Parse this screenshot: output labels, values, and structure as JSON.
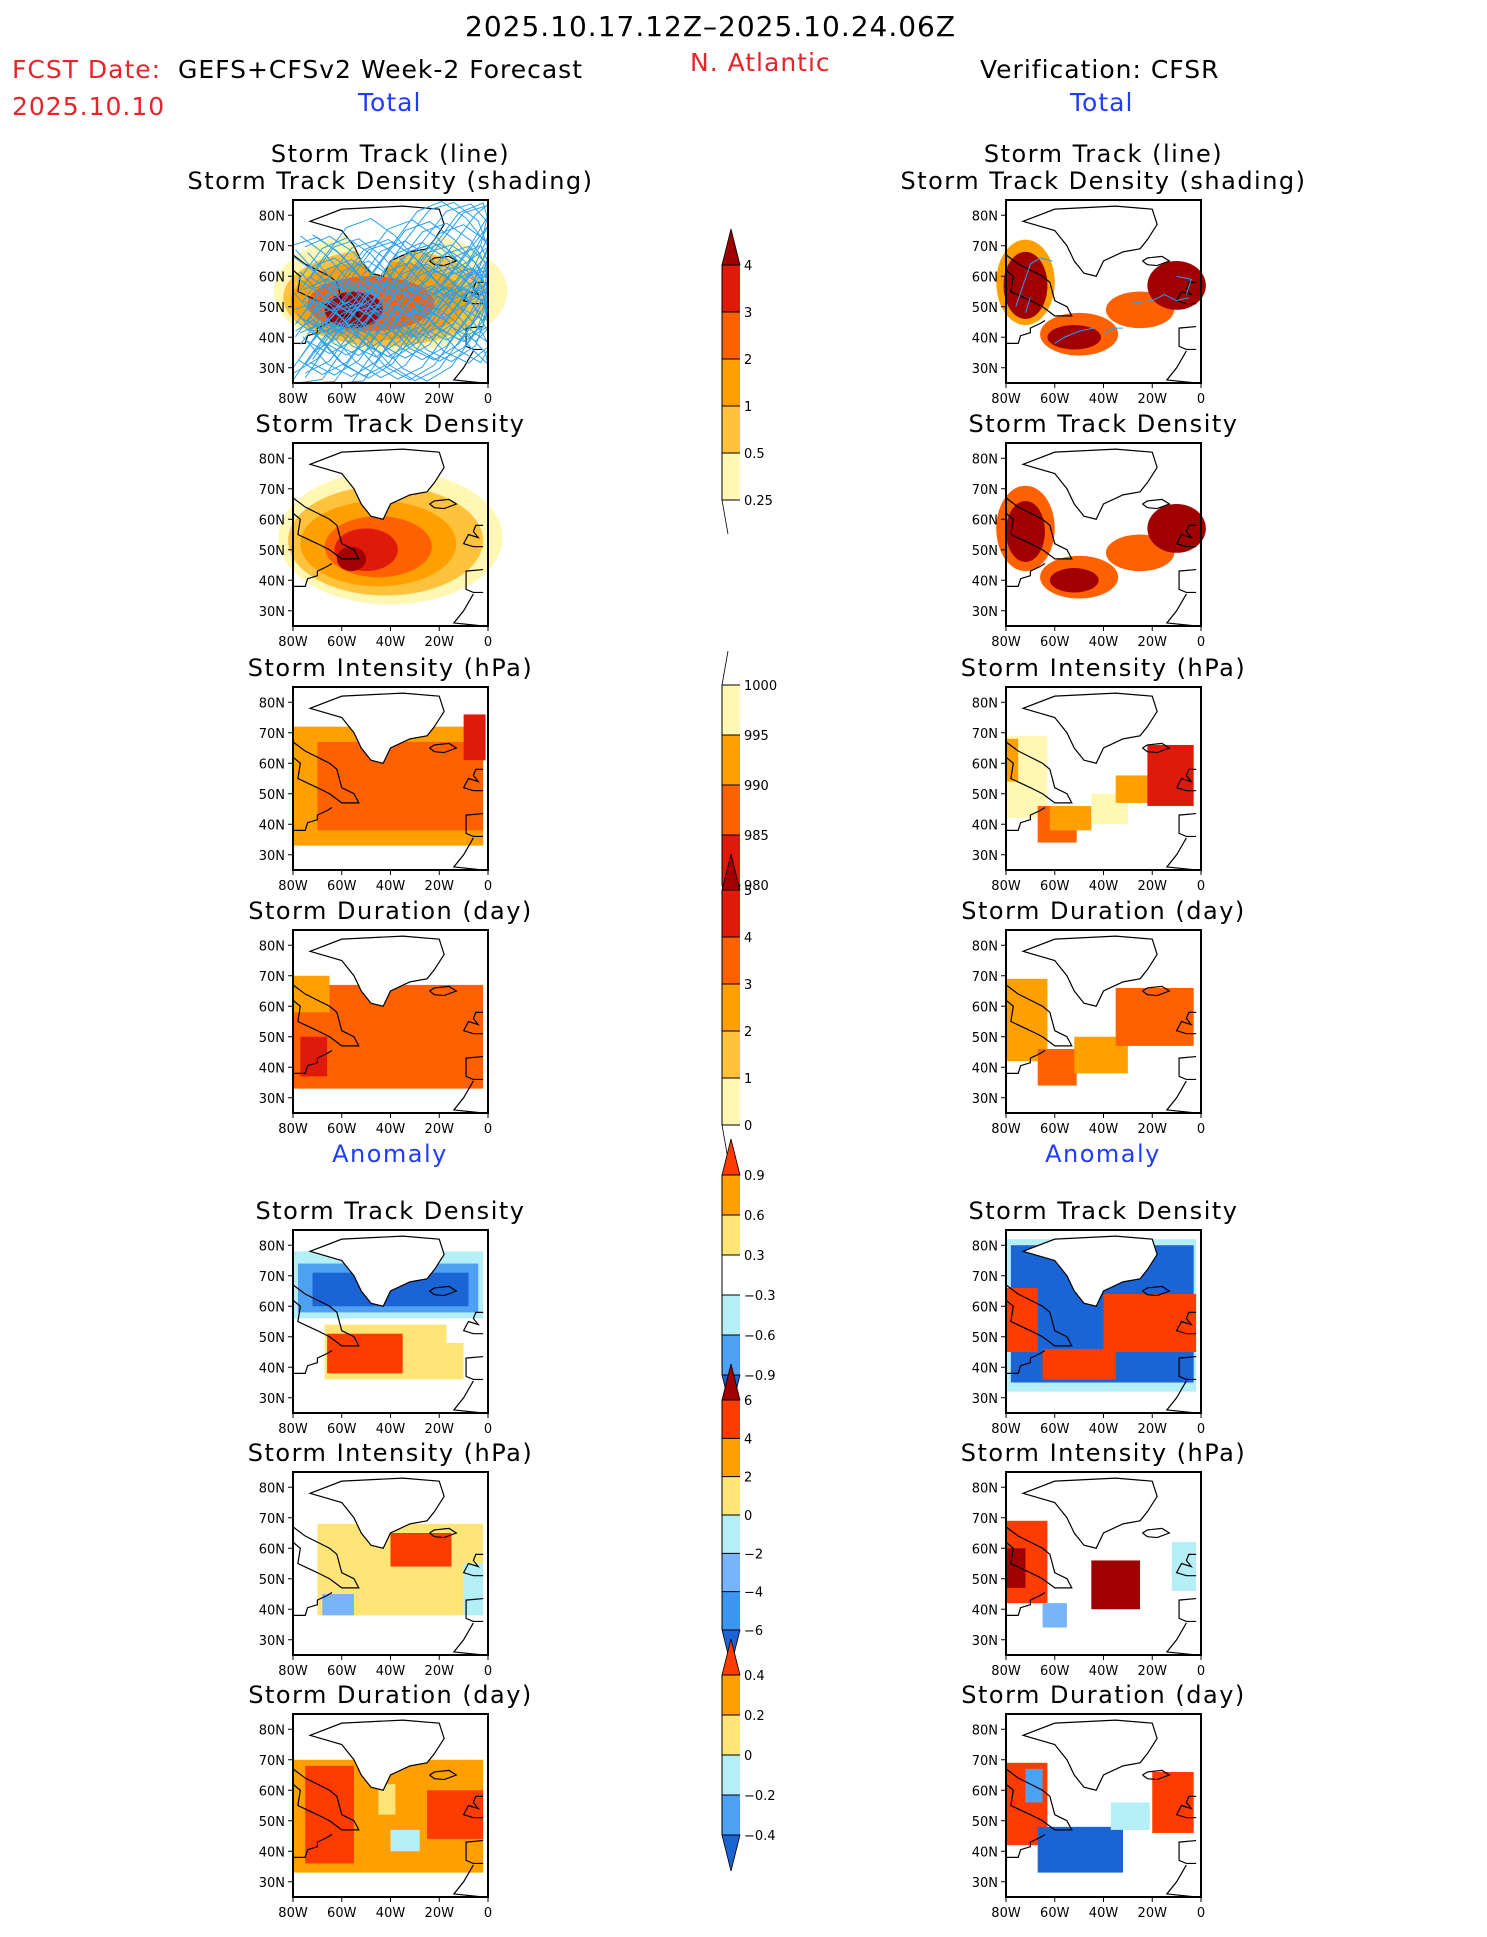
{
  "header": {
    "period": "2025.10.17.12Z–2025.10.24.06Z",
    "fcst_label": "FCST Date:",
    "fcst_model": "GEFS+CFSv2 Week-2 Forecast",
    "fcst_date": "2025.10.10",
    "region": "N. Atlantic",
    "verification": "Verification: CFSR",
    "left_total": "Total",
    "right_total": "Total",
    "left_anomaly": "Anomaly",
    "right_anomaly": "Anomaly"
  },
  "colors": {
    "header_red": "#e8242a",
    "section_blue": "#1f3cff",
    "track_line": "#2aa0f0",
    "positive_scale": [
      "#fff7b3",
      "#ffc23c",
      "#ffa000",
      "#ff6000",
      "#e01a0a",
      "#a00000"
    ],
    "anomaly_scale": [
      "#1a64d6",
      "#4ea0f2",
      "#b4eef6",
      "#ffffff",
      "#ffe478",
      "#ffa000",
      "#ff3c00"
    ],
    "intensity_anom_scale": [
      "#1a64d6",
      "#3c96f0",
      "#78b4fa",
      "#b4eef6",
      "#ffe478",
      "#ffa000",
      "#ff3c00",
      "#a00000"
    ]
  },
  "chart_data": [
    {
      "type": "heatmap",
      "id": "fcst-total-track",
      "title_lines": [
        "Storm Track (line)",
        "Storm Track Density (shading)"
      ],
      "column": "forecast",
      "section": "Total",
      "x_ticks": [
        "80W",
        "60W",
        "40W",
        "20W",
        "0"
      ],
      "y_ticks": [
        "80N",
        "70N",
        "60N",
        "50N",
        "40N",
        "30N"
      ],
      "xlim": [
        -80,
        0
      ],
      "ylim": [
        25,
        85
      ],
      "overlay": "storm-track-lines",
      "field": "storm_track_density",
      "max_center": {
        "lon": -55,
        "lat": 48,
        "value": 3.5
      }
    },
    {
      "type": "heatmap",
      "id": "verif-total-track",
      "title_lines": [
        "Storm Track (line)",
        "Storm Track Density (shading)"
      ],
      "column": "verification",
      "section": "Total",
      "x_ticks": [
        "80W",
        "60W",
        "40W",
        "20W",
        "0"
      ],
      "y_ticks": [
        "80N",
        "70N",
        "60N",
        "50N",
        "40N",
        "30N"
      ],
      "xlim": [
        -80,
        0
      ],
      "ylim": [
        25,
        85
      ],
      "overlay": "storm-track-lines",
      "field": "storm_track_density"
    },
    {
      "type": "heatmap",
      "id": "fcst-total-density",
      "title_lines": [
        "Storm Track Density"
      ],
      "column": "forecast",
      "section": "Total",
      "x_ticks": [
        "80W",
        "60W",
        "40W",
        "20W",
        "0"
      ],
      "y_ticks": [
        "80N",
        "70N",
        "60N",
        "50N",
        "40N",
        "30N"
      ],
      "xlim": [
        -80,
        0
      ],
      "ylim": [
        25,
        85
      ],
      "field": "storm_track_density"
    },
    {
      "type": "heatmap",
      "id": "verif-total-density",
      "title_lines": [
        "Storm Track Density"
      ],
      "column": "verification",
      "section": "Total",
      "x_ticks": [
        "80W",
        "60W",
        "40W",
        "20W",
        "0"
      ],
      "y_ticks": [
        "80N",
        "70N",
        "60N",
        "50N",
        "40N",
        "30N"
      ],
      "xlim": [
        -80,
        0
      ],
      "ylim": [
        25,
        85
      ],
      "field": "storm_track_density"
    },
    {
      "type": "heatmap",
      "id": "fcst-total-intensity",
      "title_lines": [
        "Storm Intensity (hPa)"
      ],
      "column": "forecast",
      "section": "Total",
      "x_ticks": [
        "80W",
        "60W",
        "40W",
        "20W",
        "0"
      ],
      "y_ticks": [
        "80N",
        "70N",
        "60N",
        "50N",
        "40N",
        "30N"
      ],
      "xlim": [
        -80,
        0
      ],
      "ylim": [
        25,
        85
      ],
      "field": "storm_intensity"
    },
    {
      "type": "heatmap",
      "id": "verif-total-intensity",
      "title_lines": [
        "Storm Intensity (hPa)"
      ],
      "column": "verification",
      "section": "Total",
      "x_ticks": [
        "80W",
        "60W",
        "40W",
        "20W",
        "0"
      ],
      "y_ticks": [
        "80N",
        "70N",
        "60N",
        "50N",
        "40N",
        "30N"
      ],
      "xlim": [
        -80,
        0
      ],
      "ylim": [
        25,
        85
      ],
      "field": "storm_intensity"
    },
    {
      "type": "heatmap",
      "id": "fcst-total-duration",
      "title_lines": [
        "Storm Duration (day)"
      ],
      "column": "forecast",
      "section": "Total",
      "x_ticks": [
        "80W",
        "60W",
        "40W",
        "20W",
        "0"
      ],
      "y_ticks": [
        "80N",
        "70N",
        "60N",
        "50N",
        "40N",
        "30N"
      ],
      "xlim": [
        -80,
        0
      ],
      "ylim": [
        25,
        85
      ],
      "field": "storm_duration"
    },
    {
      "type": "heatmap",
      "id": "verif-total-duration",
      "title_lines": [
        "Storm Duration (day)"
      ],
      "column": "verification",
      "section": "Total",
      "x_ticks": [
        "80W",
        "60W",
        "40W",
        "20W",
        "0"
      ],
      "y_ticks": [
        "80N",
        "70N",
        "60N",
        "50N",
        "40N",
        "30N"
      ],
      "xlim": [
        -80,
        0
      ],
      "ylim": [
        25,
        85
      ],
      "field": "storm_duration"
    },
    {
      "type": "heatmap",
      "id": "fcst-anom-density",
      "title_lines": [
        "Storm Track Density"
      ],
      "column": "forecast",
      "section": "Anomaly",
      "x_ticks": [
        "80W",
        "60W",
        "40W",
        "20W",
        "0"
      ],
      "y_ticks": [
        "80N",
        "70N",
        "60N",
        "50N",
        "40N",
        "30N"
      ],
      "xlim": [
        -80,
        0
      ],
      "ylim": [
        25,
        85
      ],
      "field": "storm_track_density_anomaly"
    },
    {
      "type": "heatmap",
      "id": "verif-anom-density",
      "title_lines": [
        "Storm Track Density"
      ],
      "column": "verification",
      "section": "Anomaly",
      "x_ticks": [
        "80W",
        "60W",
        "40W",
        "20W",
        "0"
      ],
      "y_ticks": [
        "80N",
        "70N",
        "60N",
        "50N",
        "40N",
        "30N"
      ],
      "xlim": [
        -80,
        0
      ],
      "ylim": [
        25,
        85
      ],
      "field": "storm_track_density_anomaly"
    },
    {
      "type": "heatmap",
      "id": "fcst-anom-intensity",
      "title_lines": [
        "Storm Intensity (hPa)"
      ],
      "column": "forecast",
      "section": "Anomaly",
      "x_ticks": [
        "80W",
        "60W",
        "40W",
        "20W",
        "0"
      ],
      "y_ticks": [
        "80N",
        "70N",
        "60N",
        "50N",
        "40N",
        "30N"
      ],
      "xlim": [
        -80,
        0
      ],
      "ylim": [
        25,
        85
      ],
      "field": "storm_intensity_anomaly"
    },
    {
      "type": "heatmap",
      "id": "verif-anom-intensity",
      "title_lines": [
        "Storm Intensity (hPa)"
      ],
      "column": "verification",
      "section": "Anomaly",
      "x_ticks": [
        "80W",
        "60W",
        "40W",
        "20W",
        "0"
      ],
      "y_ticks": [
        "80N",
        "70N",
        "60N",
        "50N",
        "40N",
        "30N"
      ],
      "xlim": [
        -80,
        0
      ],
      "ylim": [
        25,
        85
      ],
      "field": "storm_intensity_anomaly"
    },
    {
      "type": "heatmap",
      "id": "fcst-anom-duration",
      "title_lines": [
        "Storm Duration (day)"
      ],
      "column": "forecast",
      "section": "Anomaly",
      "x_ticks": [
        "80W",
        "60W",
        "40W",
        "20W",
        "0"
      ],
      "y_ticks": [
        "80N",
        "70N",
        "60N",
        "50N",
        "40N",
        "30N"
      ],
      "xlim": [
        -80,
        0
      ],
      "ylim": [
        25,
        85
      ],
      "field": "storm_duration_anomaly"
    },
    {
      "type": "heatmap",
      "id": "verif-anom-duration",
      "title_lines": [
        "Storm Duration (day)"
      ],
      "column": "verification",
      "section": "Anomaly",
      "x_ticks": [
        "80W",
        "60W",
        "40W",
        "20W",
        "0"
      ],
      "y_ticks": [
        "80N",
        "70N",
        "60N",
        "50N",
        "40N",
        "30N"
      ],
      "xlim": [
        -80,
        0
      ],
      "ylim": [
        25,
        85
      ],
      "field": "storm_duration_anomaly"
    }
  ],
  "colorbars": [
    {
      "id": "density-scale",
      "labels": [
        "0.25",
        "0.5",
        "1",
        "2",
        "3",
        "4"
      ],
      "colors": [
        "#fff7b3",
        "#ffc23c",
        "#ffa000",
        "#ff6000",
        "#e01a0a"
      ],
      "top_arrow": "#a00000",
      "bottom_arrow": null
    },
    {
      "id": "intensity-scale",
      "labels": [
        "980",
        "985",
        "990",
        "995",
        "1000"
      ],
      "colors": [
        "#e01a0a",
        "#ff6000",
        "#ffa000",
        "#fff7b3"
      ],
      "top_arrow": null,
      "bottom_arrow": "#a00000"
    },
    {
      "id": "duration-scale",
      "labels": [
        "0",
        "1",
        "2",
        "3",
        "4",
        "5"
      ],
      "colors": [
        "#fff7b3",
        "#ffc23c",
        "#ffa000",
        "#ff6000",
        "#e01a0a"
      ],
      "top_arrow": "#a00000",
      "bottom_arrow": null
    },
    {
      "id": "density-anom-scale",
      "labels": [
        "-0.9",
        "-0.6",
        "-0.3",
        "0.3",
        "0.6",
        "0.9"
      ],
      "colors": [
        "#4ea0f2",
        "#b4eef6",
        "#ffffff",
        "#ffe478",
        "#ffa000"
      ],
      "top_arrow": "#ff3c00",
      "bottom_arrow": "#1a64d6"
    },
    {
      "id": "intensity-anom-scale",
      "labels": [
        "-6",
        "-4",
        "-2",
        "0",
        "2",
        "4",
        "6"
      ],
      "colors": [
        "#3c96f0",
        "#78b4fa",
        "#b4eef6",
        "#ffe478",
        "#ffa000",
        "#ff3c00"
      ],
      "top_arrow": "#a00000",
      "bottom_arrow": "#1a64d6"
    },
    {
      "id": "duration-anom-scale",
      "labels": [
        "-0.4",
        "-0.2",
        "0",
        "0.2",
        "0.4"
      ],
      "colors": [
        "#4ea0f2",
        "#b4eef6",
        "#ffe478",
        "#ffa000"
      ],
      "top_arrow": "#ff3c00",
      "bottom_arrow": "#1a64d6"
    }
  ]
}
